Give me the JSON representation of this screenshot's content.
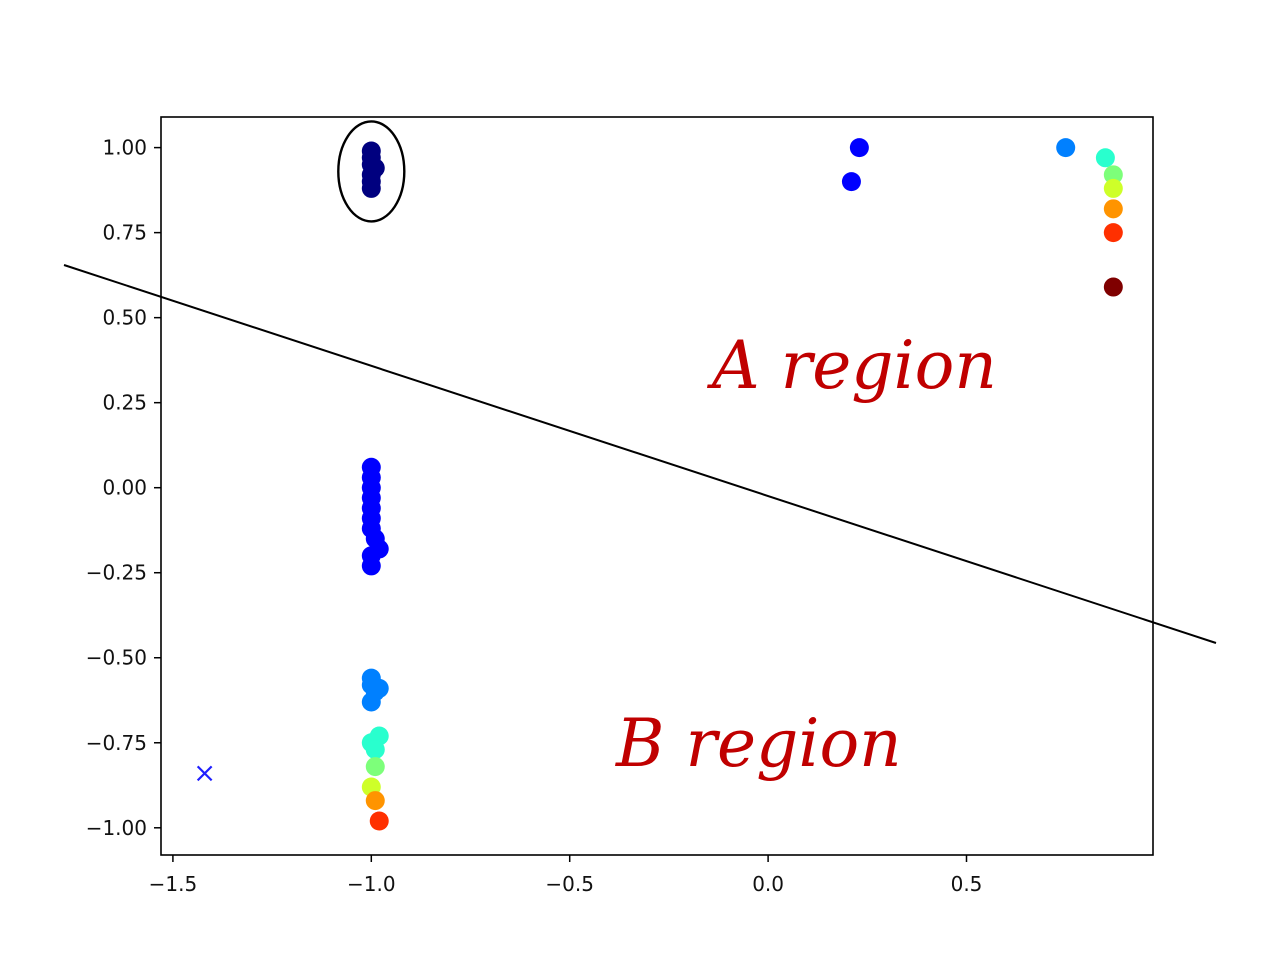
{
  "chart_data": {
    "type": "scatter",
    "title": "",
    "xlabel": "",
    "ylabel": "",
    "xlim": [
      -1.53,
      0.97
    ],
    "ylim": [
      -1.08,
      1.09
    ],
    "grid": false,
    "x_ticks": [
      -1.5,
      -1.0,
      -0.5,
      0.0,
      0.5
    ],
    "x_tick_labels": [
      "−1.5",
      "−1.0",
      "−0.5",
      "0.0",
      "0.5"
    ],
    "y_ticks": [
      1.0,
      0.75,
      0.5,
      0.25,
      0.0,
      -0.25,
      -0.5,
      -0.75,
      -1.0
    ],
    "y_tick_labels": [
      "1.00",
      "0.75",
      "0.50",
      "0.25",
      "0.00",
      "−0.25",
      "−0.50",
      "−0.75",
      "−1.00"
    ],
    "points": [
      {
        "x": -1.0,
        "y": 0.99,
        "color": "#00007f"
      },
      {
        "x": -1.0,
        "y": 0.97,
        "color": "#00007f"
      },
      {
        "x": -1.0,
        "y": 0.95,
        "color": "#00007f"
      },
      {
        "x": -0.99,
        "y": 0.94,
        "color": "#00007f"
      },
      {
        "x": -1.0,
        "y": 0.92,
        "color": "#00007f"
      },
      {
        "x": -1.0,
        "y": 0.9,
        "color": "#00007f"
      },
      {
        "x": -1.0,
        "y": 0.88,
        "color": "#00007f"
      },
      {
        "x": 0.23,
        "y": 1.0,
        "color": "#0000ff"
      },
      {
        "x": 0.21,
        "y": 0.9,
        "color": "#0000ff"
      },
      {
        "x": 0.75,
        "y": 1.0,
        "color": "#0080ff"
      },
      {
        "x": 0.85,
        "y": 0.97,
        "color": "#29ffce"
      },
      {
        "x": 0.87,
        "y": 0.92,
        "color": "#7dff7a"
      },
      {
        "x": 0.87,
        "y": 0.88,
        "color": "#ceff29"
      },
      {
        "x": 0.87,
        "y": 0.82,
        "color": "#ff9400"
      },
      {
        "x": 0.87,
        "y": 0.75,
        "color": "#ff3000"
      },
      {
        "x": 0.87,
        "y": 0.59,
        "color": "#7f0000"
      },
      {
        "x": -1.0,
        "y": 0.06,
        "color": "#0000ff"
      },
      {
        "x": -1.0,
        "y": 0.03,
        "color": "#0000ff"
      },
      {
        "x": -1.0,
        "y": 0.0,
        "color": "#0000ff"
      },
      {
        "x": -1.0,
        "y": -0.03,
        "color": "#0000ff"
      },
      {
        "x": -1.0,
        "y": -0.06,
        "color": "#0000ff"
      },
      {
        "x": -1.0,
        "y": -0.09,
        "color": "#0000ff"
      },
      {
        "x": -1.0,
        "y": -0.12,
        "color": "#0000ff"
      },
      {
        "x": -0.99,
        "y": -0.15,
        "color": "#0000ff"
      },
      {
        "x": -0.98,
        "y": -0.18,
        "color": "#0000ff"
      },
      {
        "x": -1.0,
        "y": -0.2,
        "color": "#0000ff"
      },
      {
        "x": -1.0,
        "y": -0.23,
        "color": "#0000ff"
      },
      {
        "x": -1.0,
        "y": -0.56,
        "color": "#0080ff"
      },
      {
        "x": -1.0,
        "y": -0.58,
        "color": "#0080ff"
      },
      {
        "x": -0.99,
        "y": -0.6,
        "color": "#0080ff"
      },
      {
        "x": -0.98,
        "y": -0.59,
        "color": "#0080ff"
      },
      {
        "x": -1.0,
        "y": -0.63,
        "color": "#0080ff"
      },
      {
        "x": -0.98,
        "y": -0.73,
        "color": "#29ffce"
      },
      {
        "x": -1.0,
        "y": -0.75,
        "color": "#29ffce"
      },
      {
        "x": -0.99,
        "y": -0.77,
        "color": "#29ffce"
      },
      {
        "x": -0.99,
        "y": -0.82,
        "color": "#7dff7a"
      },
      {
        "x": -1.0,
        "y": -0.88,
        "color": "#ceff29"
      },
      {
        "x": -0.99,
        "y": -0.92,
        "color": "#ff9400"
      },
      {
        "x": -0.98,
        "y": -0.98,
        "color": "#ff3000"
      }
    ],
    "x_marker": {
      "x": -1.42,
      "y": -0.84,
      "color": "#1f1fff"
    },
    "annotations": [
      {
        "text": "A region",
        "color": "#c00000"
      },
      {
        "text": "B region",
        "color": "#c00000"
      }
    ],
    "separator_line": {
      "x1": -1.5,
      "y1": 0.57,
      "x2": 0.95,
      "y2": -0.39
    },
    "encircled_cluster": {
      "x": -1.0,
      "y_low": 0.86,
      "y_high": 1.0
    }
  }
}
